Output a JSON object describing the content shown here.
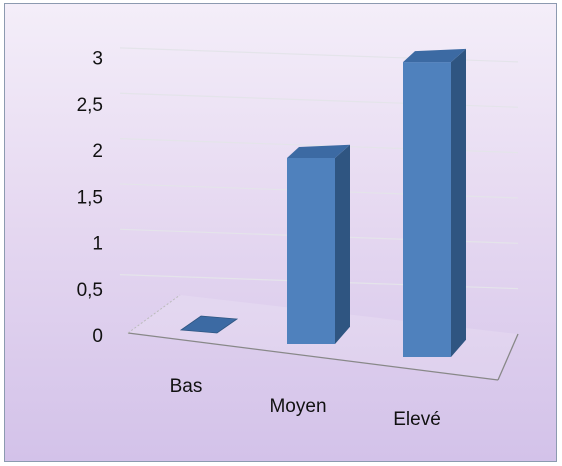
{
  "chart_data": {
    "type": "bar",
    "categories": [
      "Bas",
      "Moyen",
      "Elevé"
    ],
    "values": [
      0,
      2,
      3
    ],
    "yticks": [
      "0",
      "0,5",
      "1",
      "1,5",
      "2",
      "2,5",
      "3"
    ],
    "ylim": [
      0,
      3
    ],
    "grid": true,
    "three_d": true,
    "colors": {
      "bar_front": "#4f81bd",
      "bar_side": "#2f5581",
      "bar_top": "#3c6aa3",
      "gridline": "#e4e4ea",
      "floor_edge": "#888888"
    }
  }
}
